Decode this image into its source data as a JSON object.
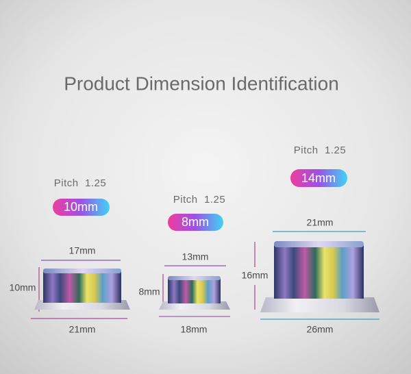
{
  "title": "Product Dimension Identification",
  "products": [
    {
      "pitch": "Pitch  1.25",
      "size": "10mm",
      "top_width": "17mm",
      "height": "10mm",
      "bottom_width": "21mm"
    },
    {
      "pitch": "Pitch  1.25",
      "size": "8mm",
      "top_width": "13mm",
      "height": "8mm",
      "bottom_width": "18mm"
    },
    {
      "pitch": "Pitch  1.25",
      "size": "14mm",
      "top_width": "21mm",
      "height": "16mm",
      "bottom_width": "26mm"
    }
  ]
}
